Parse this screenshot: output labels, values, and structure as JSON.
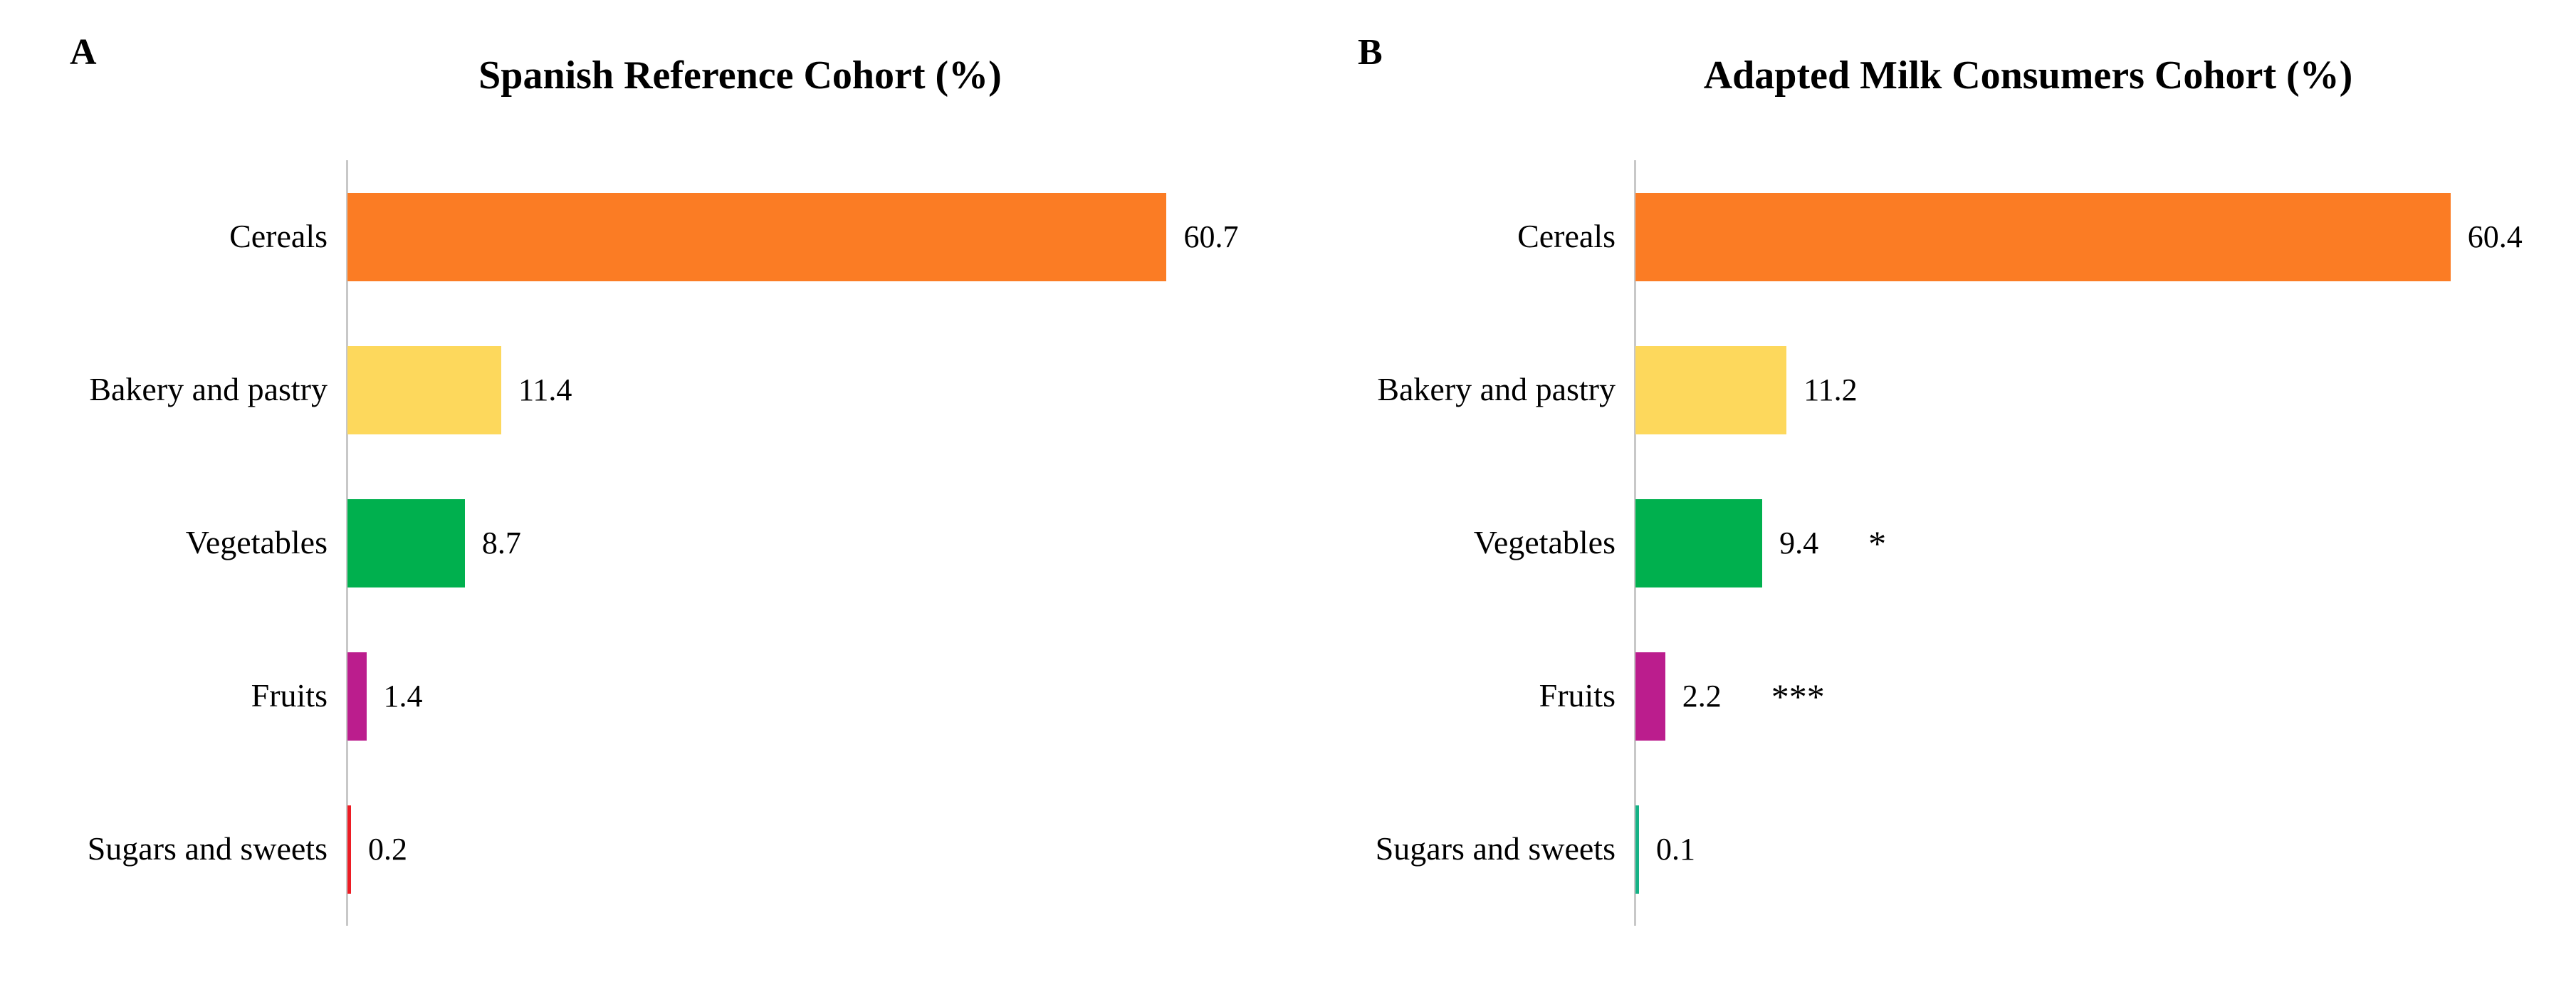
{
  "page": {
    "background_color": "#ffffff",
    "text_color": "#000000",
    "axis_color": "#c8c8c8"
  },
  "panels": [
    {
      "corner_label": "A",
      "title": "Spanish Reference Cohort (%)"
    },
    {
      "corner_label": "B",
      "title": "Adapted Milk Consumers Cohort (%)"
    }
  ],
  "chart_data": [
    {
      "type": "bar",
      "orientation": "horizontal",
      "title": "Spanish Reference Cohort (%)",
      "panel_label": "A",
      "categories": [
        "Cereals",
        "Bakery and pastry",
        "Vegetables",
        "Fruits",
        "Sugars and sweets"
      ],
      "values": [
        60.7,
        11.4,
        8.7,
        1.4,
        0.2
      ],
      "value_labels": [
        "60.7",
        "11.4",
        "8.7",
        "1.4",
        "0.2"
      ],
      "annotations": [
        "",
        "",
        "",
        "",
        ""
      ],
      "bar_colors": [
        "#fb7c24",
        "#fdd85c",
        "#00b04e",
        "#bb1d8d",
        "#ed1c24"
      ],
      "xlim": [
        0,
        65
      ],
      "grid": false,
      "legend": false,
      "axis_color": "#c8c8c8"
    },
    {
      "type": "bar",
      "orientation": "horizontal",
      "title": "Adapted Milk Consumers Cohort (%)",
      "panel_label": "B",
      "categories": [
        "Cereals",
        "Bakery and pastry",
        "Vegetables",
        "Fruits",
        "Sugars and sweets"
      ],
      "values": [
        60.4,
        11.2,
        9.4,
        2.2,
        0.1
      ],
      "value_labels": [
        "60.4",
        "11.2",
        "9.4",
        "2.2",
        "0.1"
      ],
      "annotations": [
        "",
        "",
        "*",
        "***",
        ""
      ],
      "bar_colors": [
        "#fb7c24",
        "#fdd85c",
        "#00b04e",
        "#bb1d8d",
        "#16b286"
      ],
      "xlim": [
        0,
        65
      ],
      "grid": false,
      "legend": false,
      "axis_color": "#c8c8c8"
    }
  ]
}
